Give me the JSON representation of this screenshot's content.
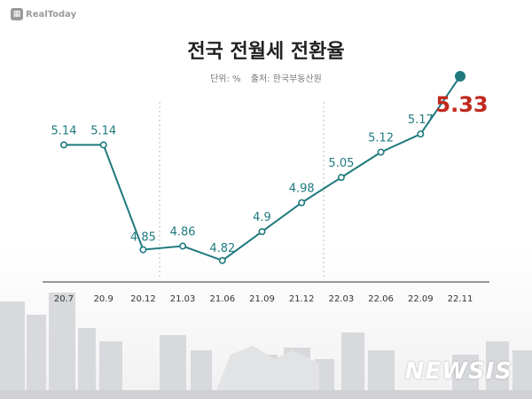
{
  "brand": {
    "logo_text": "RealToday",
    "logo_icon": "building-logo-icon"
  },
  "header": {
    "title": "전국 전월세 전환율",
    "unit": "단위: %",
    "source": "출처: 한국부동산원"
  },
  "watermark": "NEWSIS",
  "colors": {
    "line": "#1f7a7e",
    "highlight": "#c0281e",
    "axis": "#333333"
  },
  "chart_data": {
    "type": "line",
    "title": "전국 전월세 전환율",
    "unit": "%",
    "categories": [
      "20.7",
      "20.9",
      "20.12",
      "21.03",
      "21.06",
      "21.09",
      "21.12",
      "22.03",
      "22.06",
      "22.09",
      "22.11"
    ],
    "series": [
      {
        "values": [
          5.14,
          5.14,
          4.85,
          4.86,
          4.82,
          4.9,
          4.98,
          5.05,
          5.12,
          5.17,
          5.33
        ],
        "labels": [
          "5.14",
          "5.14",
          "4.85",
          "4.86",
          "4.82",
          "4.9",
          "4.98",
          "5.05",
          "5.12",
          "5.17",
          "5.33"
        ]
      }
    ],
    "highlight_index": 10,
    "ylim": [
      4.8,
      5.33
    ],
    "grid": false,
    "legend": "none"
  }
}
